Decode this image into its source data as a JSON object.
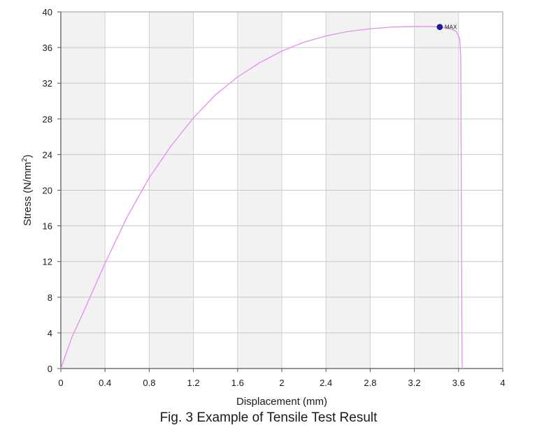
{
  "caption": "Fig. 3 Example of Tensile Test Result",
  "chart_data": {
    "type": "line",
    "title": "",
    "xlabel": "Displacement (mm)",
    "ylabel_main": "Stress (N/mm",
    "ylabel_sup": "2",
    "ylabel_tail": ")",
    "xlim": [
      0,
      4
    ],
    "ylim": [
      0,
      40
    ],
    "xticks": [
      0,
      0.4,
      0.8,
      1.2,
      1.6,
      2,
      2.4,
      2.8,
      3.2,
      3.6,
      4
    ],
    "yticks": [
      0,
      4,
      8,
      12,
      16,
      20,
      24,
      28,
      32,
      36,
      40
    ],
    "grid": true,
    "shaded_columns": true,
    "series": [
      {
        "color": "#e58cf0",
        "x": [
          0,
          0.1,
          0.2,
          0.4,
          0.6,
          0.8,
          1.0,
          1.2,
          1.4,
          1.6,
          1.8,
          2.0,
          2.2,
          2.4,
          2.6,
          2.8,
          3.0,
          3.2,
          3.35,
          3.44,
          3.52,
          3.58,
          3.61,
          3.62,
          3.625,
          3.63,
          3.632,
          3.633
        ],
        "y": [
          0,
          3.5,
          6.2,
          11.8,
          17.0,
          21.4,
          25.0,
          28.1,
          30.7,
          32.7,
          34.3,
          35.6,
          36.6,
          37.3,
          37.8,
          38.1,
          38.3,
          38.35,
          38.35,
          38.3,
          38.15,
          37.8,
          37.0,
          35.0,
          20.0,
          5.0,
          1.0,
          0
        ]
      }
    ],
    "annotations": [
      {
        "label": "MAX",
        "x": 3.43,
        "y": 38.3,
        "marker_color": "#1a1aa8"
      }
    ]
  }
}
